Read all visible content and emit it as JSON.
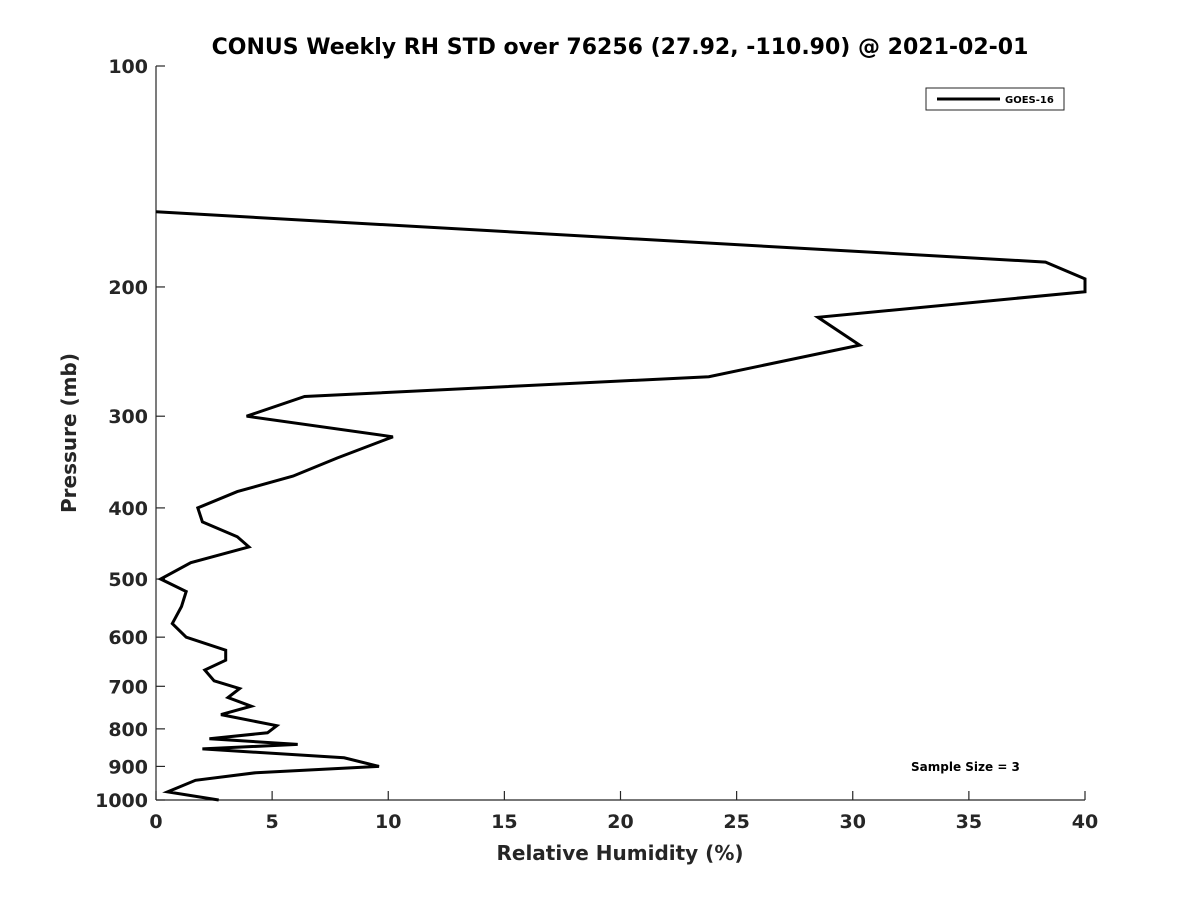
{
  "chart_data": {
    "type": "line",
    "title": "CONUS Weekly RH STD over 76256 (27.92, -110.90) @ 2021-02-01",
    "xlabel": "Relative Humidity (%)",
    "ylabel": "Pressure (mb)",
    "xlim": [
      0,
      40
    ],
    "ylim": [
      100,
      1000
    ],
    "yscale": "log",
    "y_reversed": true,
    "xticks": [
      0,
      5,
      10,
      15,
      20,
      25,
      30,
      35,
      40
    ],
    "yticks": [
      100,
      200,
      300,
      400,
      500,
      600,
      700,
      800,
      900,
      1000
    ],
    "grid": false,
    "legend_position": "top-right",
    "annotation": "Sample Size = 3",
    "series": [
      {
        "name": "GOES-16",
        "color": "#000000",
        "points": [
          [
            0,
            158
          ],
          [
            38.3,
            185
          ],
          [
            40,
            195
          ],
          [
            40,
            203
          ],
          [
            28.5,
            220
          ],
          [
            30.3,
            240
          ],
          [
            23.8,
            265
          ],
          [
            6.4,
            282
          ],
          [
            3.9,
            300
          ],
          [
            10.2,
            320
          ],
          [
            7.8,
            342
          ],
          [
            5.9,
            362
          ],
          [
            3.5,
            380
          ],
          [
            1.8,
            400
          ],
          [
            2.0,
            418
          ],
          [
            3.5,
            438
          ],
          [
            4.0,
            452
          ],
          [
            1.5,
            475
          ],
          [
            0.2,
            500
          ],
          [
            1.3,
            520
          ],
          [
            1.1,
            545
          ],
          [
            0.7,
            575
          ],
          [
            1.3,
            600
          ],
          [
            3.0,
            625
          ],
          [
            3.0,
            645
          ],
          [
            2.1,
            665
          ],
          [
            2.5,
            688
          ],
          [
            3.6,
            705
          ],
          [
            3.1,
            725
          ],
          [
            4.1,
            745
          ],
          [
            2.8,
            765
          ],
          [
            5.2,
            792
          ],
          [
            4.8,
            810
          ],
          [
            2.3,
            825
          ],
          [
            6.1,
            840
          ],
          [
            2.0,
            852
          ],
          [
            8.1,
            876
          ],
          [
            9.6,
            900
          ],
          [
            4.3,
            918
          ],
          [
            1.7,
            940
          ],
          [
            0.5,
            975
          ],
          [
            2.7,
            1000
          ]
        ]
      }
    ]
  }
}
